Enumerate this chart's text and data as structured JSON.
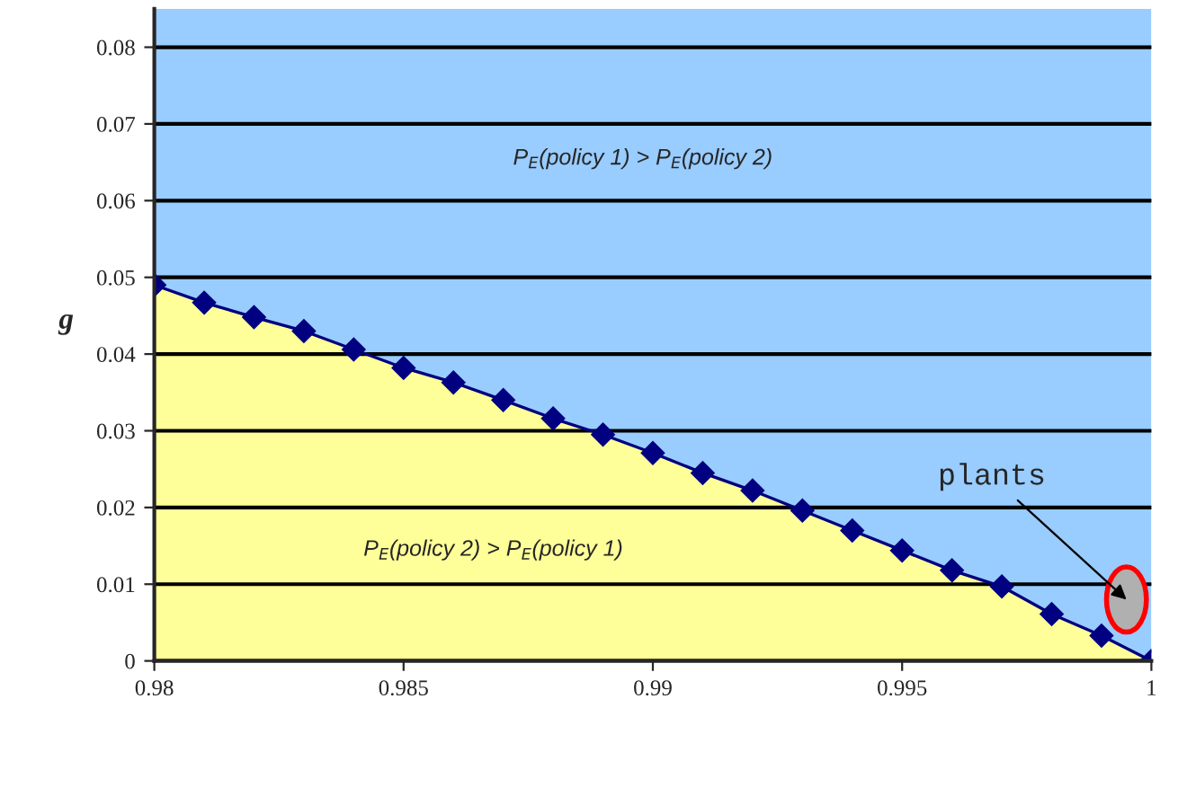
{
  "chart_data": {
    "type": "area",
    "ylabel": "g",
    "x": [
      0.98,
      0.981,
      0.982,
      0.983,
      0.984,
      0.985,
      0.986,
      0.987,
      0.988,
      0.989,
      0.99,
      0.991,
      0.992,
      0.993,
      0.994,
      0.995,
      0.996,
      0.997,
      0.998,
      0.999,
      1.0
    ],
    "series": [
      {
        "color": "#ffff99",
        "marker": "diamond",
        "values": [
          0.049,
          0.0467,
          0.0448,
          0.043,
          0.0406,
          0.0382,
          0.0363,
          0.034,
          0.0316,
          0.0295,
          0.0271,
          0.0245,
          0.0222,
          0.0196,
          0.017,
          0.0144,
          0.0118,
          0.0097,
          0.0061,
          0.0033,
          0
        ]
      }
    ],
    "bands": [
      {
        "axis": "y",
        "from": 0,
        "to": 0.085,
        "color": "#99ccff"
      }
    ],
    "xlim": [
      0.98,
      1.0
    ],
    "xticks": [
      0.98,
      0.985,
      0.99,
      0.995,
      1
    ],
    "ylim": [
      0,
      0.085
    ],
    "yticks": [
      0,
      0.01,
      0.02,
      0.03,
      0.04,
      0.05,
      0.06,
      0.07,
      0.08
    ],
    "grid": "y",
    "annotations": [
      "P$_{E}$(policy 1) > P$_{E}$(policy 2)",
      "P$_{E}$(policy 2) > P$_{E}$(policy 1)",
      {
        "text": "plants",
        "x": 0.9995,
        "y": 0.008
      }
    ]
  }
}
